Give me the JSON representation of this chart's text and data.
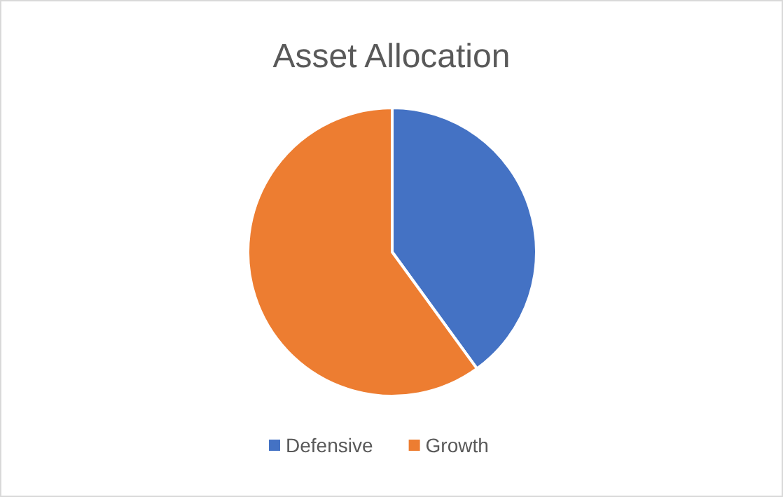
{
  "chart_data": {
    "type": "pie",
    "title": "Asset Allocation",
    "categories": [
      "Defensive",
      "Growth"
    ],
    "values": [
      40,
      60
    ],
    "colors": [
      "#4472c4",
      "#ed7d31"
    ],
    "legend": "bottom"
  }
}
